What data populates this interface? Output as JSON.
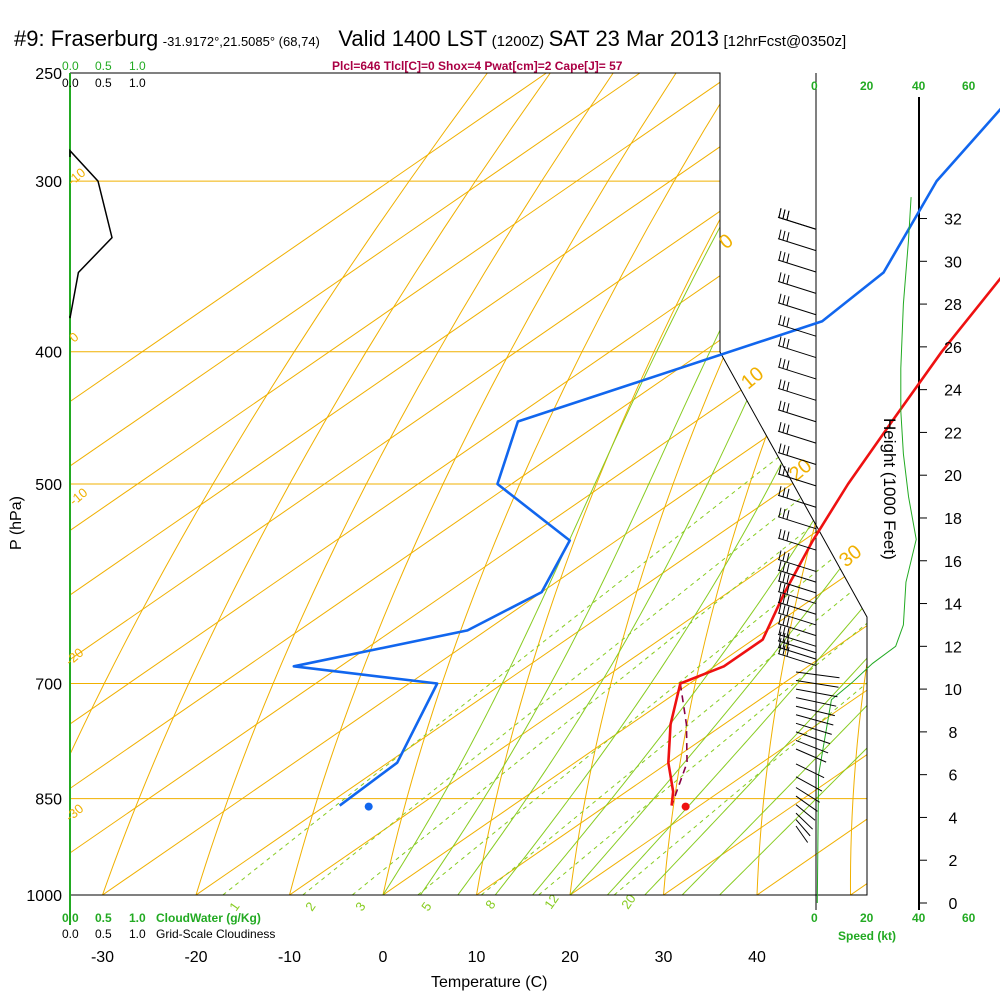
{
  "header": {
    "station": "#9: Fraserburg",
    "coords": "-31.9172°,21.5085° (68,74)",
    "valid": "Valid 1400 LST",
    "zulu": "(1200Z)",
    "date": "SAT 23 Mar 2013",
    "fcst": "[12hrFcst@0350z]"
  },
  "params_line": "Plcl=646 Tlcl[C]=0 Shox=4 Pwat[cm]=2 Cape[J]= 57",
  "cloudwater": {
    "label": "CloudWater (g/Kg)",
    "ticks": [
      "0.0",
      "0.5",
      "1.0"
    ],
    "color": "#22aa22"
  },
  "cloudiness": {
    "label": "Grid-Scale Cloudiness",
    "ticks": [
      "0.0",
      "0.5",
      "1.0"
    ]
  },
  "speed_axis": {
    "label": "Speed (kt)",
    "ticks": [
      "0",
      "20",
      "40",
      "60"
    ],
    "color": "#22aa22"
  },
  "colors": {
    "isotherm": "#f0b000",
    "dry_adiabat": "#f0b000",
    "moist_adiabat": "#88cc22",
    "mixing_ratio": "#88cc22",
    "temperature": "#ee1111",
    "dewpoint": "#1166ee",
    "parcel": "#880044",
    "params": "#aa0044"
  },
  "chart_data": {
    "type": "skew-t log-p sounding",
    "xlabel": "Temperature (C)",
    "ylabel": "P (hPa)",
    "y2label": "Height (1000 Feet)",
    "x_ticks": [
      -30,
      -20,
      -10,
      0,
      10,
      20,
      30,
      40
    ],
    "p_ticks": [
      250,
      300,
      400,
      500,
      700,
      850,
      1000
    ],
    "height_ticks": [
      0,
      2,
      4,
      6,
      8,
      10,
      12,
      14,
      16,
      18,
      20,
      22,
      24,
      26,
      28,
      30,
      32
    ],
    "temperature_profile": [
      {
        "p": 250,
        "t": -44.0
      },
      {
        "p": 300,
        "t": -37.5
      },
      {
        "p": 350,
        "t": -30.0
      },
      {
        "p": 400,
        "t": -24.5
      },
      {
        "p": 450,
        "t": -19.0
      },
      {
        "p": 500,
        "t": -14.0
      },
      {
        "p": 550,
        "t": -9.0
      },
      {
        "p": 600,
        "t": -4.0
      },
      {
        "p": 650,
        "t": 1.0
      },
      {
        "p": 680,
        "t": 1.0
      },
      {
        "p": 700,
        "t": -1.0
      },
      {
        "p": 750,
        "t": 4.3
      },
      {
        "p": 800,
        "t": 10.0
      },
      {
        "p": 840,
        "t": 15.0
      },
      {
        "p": 860,
        "t": 17.0
      }
    ],
    "dewpoint_profile": [
      {
        "p": 250,
        "t": -58.0
      },
      {
        "p": 300,
        "t": -51.5
      },
      {
        "p": 350,
        "t": -43.0
      },
      {
        "p": 380,
        "t": -42.0
      },
      {
        "p": 450,
        "t": -59.0
      },
      {
        "p": 500,
        "t": -51.5
      },
      {
        "p": 550,
        "t": -35.0
      },
      {
        "p": 600,
        "t": -30.0
      },
      {
        "p": 640,
        "t": -32.0
      },
      {
        "p": 680,
        "t": -45.0
      },
      {
        "p": 700,
        "t": -27.0
      },
      {
        "p": 800,
        "t": -19.0
      },
      {
        "p": 860,
        "t": -18.5
      }
    ],
    "parcel_trace": [
      {
        "p": 700,
        "t": -1.0
      },
      {
        "p": 750,
        "t": 6.0
      },
      {
        "p": 800,
        "t": 12.0
      },
      {
        "p": 860,
        "t": 17.0
      }
    ],
    "surface": {
      "p": 860,
      "t": 17.0,
      "td": -18.5
    },
    "wind_barbs": {
      "upper_levels_hft": [
        31.5,
        31.5,
        30.5,
        29.5,
        28.5,
        27.5,
        26.5,
        25.5,
        24.5,
        23.5,
        22.5,
        21.5,
        20.5,
        19.5,
        18.5,
        17.5,
        16.5,
        15.5,
        15.0,
        14.5,
        14.0,
        13.5,
        13.0,
        12.5,
        12.0,
        11.7,
        11.4,
        11.1
      ],
      "lower_levels_hft": [
        10.8,
        10.4,
        10.0,
        9.6,
        9.2,
        8.8,
        8.4,
        8.0,
        7.6,
        7.2,
        6.5,
        5.9,
        5.4,
        5.0,
        4.6,
        4.2,
        3.9,
        3.6
      ]
    },
    "cloud_water_profile": [
      {
        "p": 285,
        "v": 0.0
      },
      {
        "p": 300,
        "v": 0.4
      },
      {
        "p": 330,
        "v": 0.6
      },
      {
        "p": 350,
        "v": 0.12
      },
      {
        "p": 378,
        "v": 0.0
      }
    ],
    "wind_speed_profile_kt": [
      {
        "hft": 0,
        "s": 0.5
      },
      {
        "hft": 6,
        "s": 1.0
      },
      {
        "hft": 9.5,
        "s": 6
      },
      {
        "hft": 10.3,
        "s": 14
      },
      {
        "hft": 11.2,
        "s": 22
      },
      {
        "hft": 12.0,
        "s": 31
      },
      {
        "hft": 13.0,
        "s": 34
      },
      {
        "hft": 15.0,
        "s": 35
      },
      {
        "hft": 17.0,
        "s": 39
      },
      {
        "hft": 19.0,
        "s": 36
      },
      {
        "hft": 21.0,
        "s": 34
      },
      {
        "hft": 23.0,
        "s": 33
      },
      {
        "hft": 25.0,
        "s": 33
      },
      {
        "hft": 28.0,
        "s": 34
      },
      {
        "hft": 31.0,
        "s": 36
      },
      {
        "hft": 33.0,
        "s": 37
      }
    ],
    "mixing_ratio_labels": [
      "1",
      "2",
      "3",
      "5",
      "8",
      "12",
      "20"
    ],
    "isotherm_labels": [
      "-10",
      "0",
      "-10",
      "-20",
      "-30",
      "0",
      "10",
      "20",
      "30"
    ]
  }
}
